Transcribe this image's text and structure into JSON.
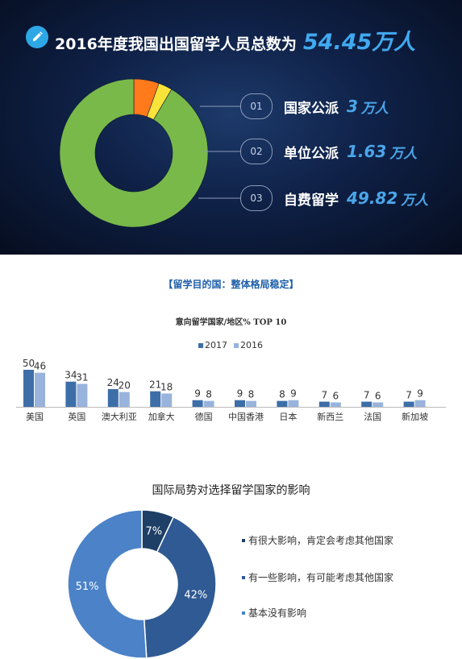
{
  "top": {
    "title_prefix": "2016年度我国出国留学人员总数为",
    "title_value": "54.45万人"
  },
  "section2": {
    "heading": "【留学目的国：整体格局稳定】"
  },
  "chart_data": [
    {
      "type": "pie",
      "style": "donut",
      "title": "2016年度我国出国留学人员总数为 54.45万人",
      "unit": "万人",
      "slices": [
        {
          "num": "01",
          "label": "国家公派",
          "value": 3,
          "value_text": "3",
          "color": "#ff7a1a"
        },
        {
          "num": "02",
          "label": "单位公派",
          "value": 1.63,
          "value_text": "1.63",
          "color": "#f7e33a"
        },
        {
          "num": "03",
          "label": "自费留学",
          "value": 49.82,
          "value_text": "49.82",
          "color": "#79b94a"
        }
      ]
    },
    {
      "type": "bar",
      "title": "意向留学国家/地区% TOP 10",
      "categories": [
        "美国",
        "英国",
        "澳大利亚",
        "加拿大",
        "德国",
        "中国香港",
        "日本",
        "新西兰",
        "法国",
        "新加坡"
      ],
      "series": [
        {
          "name": "2017",
          "values": [
            50,
            34,
            24,
            21,
            9,
            9,
            8,
            7,
            7,
            7
          ],
          "color": "#3d6ea8"
        },
        {
          "name": "2016",
          "values": [
            46,
            31,
            20,
            18,
            8,
            8,
            9,
            6,
            6,
            9
          ],
          "color": "#98b3dc"
        }
      ],
      "legend_position": "top",
      "ylim": [
        0,
        55
      ]
    },
    {
      "type": "pie",
      "style": "donut",
      "title": "国际局势对选择留学国家的影响",
      "slices": [
        {
          "label": "有很大影响，肯定会考虑其他国家",
          "value": 7,
          "value_text": "7%",
          "color": "#1e3f66"
        },
        {
          "label": "有一些影响，有可能考虑其他国家",
          "value": 42,
          "value_text": "42%",
          "color": "#2f5a93"
        },
        {
          "label": "基本没有影响",
          "value": 51,
          "value_text": "51%",
          "color": "#4b82c8"
        }
      ]
    }
  ]
}
